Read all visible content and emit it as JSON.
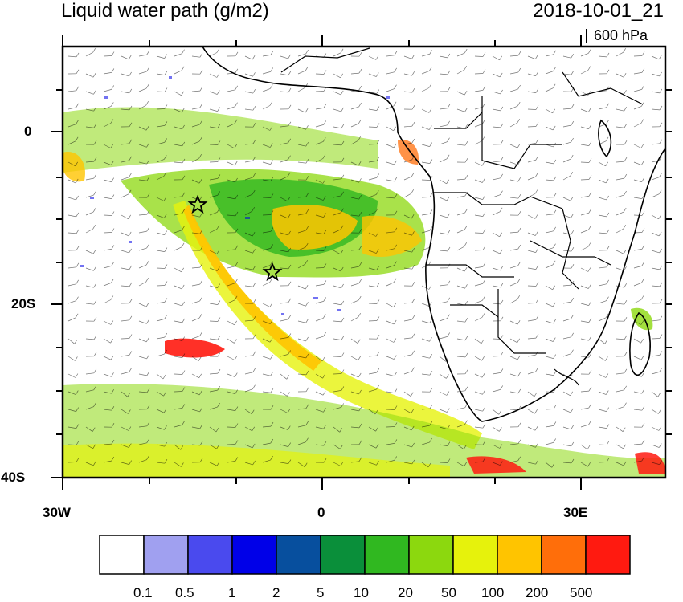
{
  "header": {
    "title": "Liquid water path (g/m2)",
    "datetime": "2018-10-01_21",
    "level": "600 hPa"
  },
  "axes": {
    "lat_labels": [
      "0",
      "20S",
      "40S"
    ],
    "lon_labels": [
      "30W",
      "0",
      "30E"
    ]
  },
  "colorbar": {
    "labels": [
      "0.1",
      "0.5",
      "1",
      "2",
      "5",
      "10",
      "20",
      "50",
      "100",
      "200",
      "500"
    ],
    "colors": [
      "#ffffff",
      "#a0a0f0",
      "#4a4aee",
      "#0000e8",
      "#074f9e",
      "#0a8f3a",
      "#30b820",
      "#8cd80e",
      "#e6f20c",
      "#ffc400",
      "#ff6e0a",
      "#ff1a10"
    ]
  },
  "map": {
    "markers": [
      "star-1",
      "star-2"
    ]
  }
}
